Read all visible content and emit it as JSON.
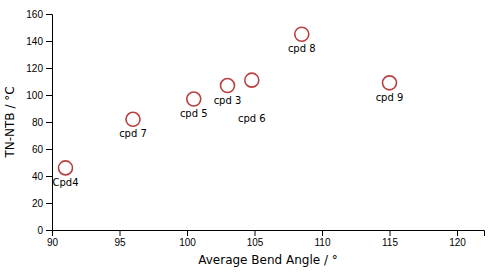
{
  "chart_data": {
    "type": "scatter",
    "x": [
      91.0,
      96.0,
      100.5,
      103.0,
      104.8,
      108.5,
      115.0
    ],
    "values": [
      46,
      82,
      97,
      107,
      111,
      145,
      109
    ],
    "labels": [
      "Cpd4",
      "cpd 7",
      "cpd 5",
      "cpd 3",
      "cpd 6",
      "cpd 8",
      "cpd 9"
    ],
    "color": "#b84040",
    "marker": "open-circle",
    "xlabel": "Average Bend Angle / °",
    "ylabel": "TN-NTB / °C",
    "xlim": [
      90,
      122
    ],
    "ylim": [
      0,
      160
    ],
    "xticks": [
      90,
      95,
      100,
      105,
      110,
      115,
      120
    ],
    "yticks": [
      0,
      20,
      40,
      60,
      80,
      100,
      120,
      140,
      160
    ]
  }
}
